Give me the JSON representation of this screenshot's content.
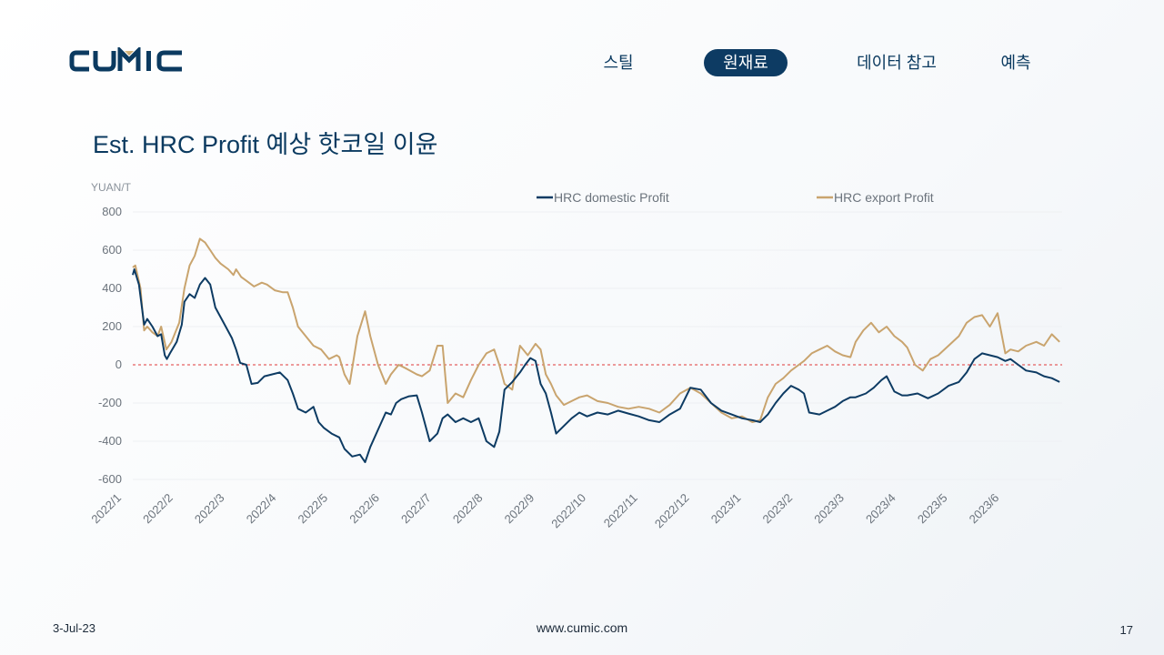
{
  "logo": {
    "text": "CUMIC"
  },
  "nav": {
    "items": [
      "스틸",
      "원재료",
      "데이터 참고",
      "예측"
    ],
    "active": "원재료"
  },
  "title": "Est. HRC Profit 예상 핫코일 이윤",
  "footer": {
    "date": "3-Jul-23",
    "url": "www.cumic.com",
    "page": "17"
  },
  "colors": {
    "domestic": "#0d3b63",
    "export": "#c9a46e",
    "zero_line": "#e03a3a",
    "grid": "#eef0f3"
  },
  "chart_data": {
    "type": "line",
    "ylabel": "YUAN/T",
    "ylim": [
      -600,
      800
    ],
    "yticks": [
      800,
      600,
      400,
      200,
      0,
      -200,
      -400,
      -600
    ],
    "xlabels": [
      "2022/1",
      "2022/2",
      "2022/3",
      "2022/4",
      "2022/5",
      "2022/6",
      "2022/7",
      "2022/8",
      "2022/9",
      "2022/10",
      "2022/11",
      "2022/12",
      "2023/1",
      "2023/2",
      "2023/3",
      "2023/4",
      "2023/5",
      "2023/6"
    ],
    "x_domain": [
      "2022/1",
      "2023/6"
    ],
    "zero_line": true,
    "legend_position": "top",
    "series": [
      {
        "name": "HRC domestic Profit",
        "color": "#0d3b63",
        "points": [
          [
            0.0,
            470
          ],
          [
            0.03,
            500
          ],
          [
            0.12,
            420
          ],
          [
            0.22,
            210
          ],
          [
            0.28,
            240
          ],
          [
            0.38,
            200
          ],
          [
            0.48,
            150
          ],
          [
            0.55,
            160
          ],
          [
            0.62,
            50
          ],
          [
            0.66,
            30
          ],
          [
            0.72,
            60
          ],
          [
            0.85,
            120
          ],
          [
            0.95,
            210
          ],
          [
            1.0,
            330
          ],
          [
            1.1,
            370
          ],
          [
            1.2,
            350
          ],
          [
            1.3,
            420
          ],
          [
            1.4,
            455
          ],
          [
            1.5,
            420
          ],
          [
            1.6,
            300
          ],
          [
            1.7,
            250
          ],
          [
            1.8,
            200
          ],
          [
            1.92,
            140
          ],
          [
            2.0,
            80
          ],
          [
            2.08,
            10
          ],
          [
            2.2,
            0
          ],
          [
            2.3,
            -100
          ],
          [
            2.42,
            -95
          ],
          [
            2.55,
            -60
          ],
          [
            2.7,
            -50
          ],
          [
            2.85,
            -40
          ],
          [
            3.0,
            -80
          ],
          [
            3.1,
            -150
          ],
          [
            3.2,
            -230
          ],
          [
            3.35,
            -250
          ],
          [
            3.5,
            -220
          ],
          [
            3.6,
            -300
          ],
          [
            3.7,
            -330
          ],
          [
            3.85,
            -360
          ],
          [
            4.0,
            -380
          ],
          [
            4.1,
            -440
          ],
          [
            4.25,
            -480
          ],
          [
            4.4,
            -470
          ],
          [
            4.5,
            -510
          ],
          [
            4.6,
            -430
          ],
          [
            4.75,
            -340
          ],
          [
            4.9,
            -250
          ],
          [
            5.0,
            -260
          ],
          [
            5.1,
            -200
          ],
          [
            5.2,
            -180
          ],
          [
            5.35,
            -165
          ],
          [
            5.5,
            -160
          ],
          [
            5.6,
            -250
          ],
          [
            5.75,
            -400
          ],
          [
            5.9,
            -360
          ],
          [
            6.0,
            -280
          ],
          [
            6.1,
            -260
          ],
          [
            6.25,
            -300
          ],
          [
            6.4,
            -280
          ],
          [
            6.55,
            -300
          ],
          [
            6.7,
            -280
          ],
          [
            6.85,
            -400
          ],
          [
            7.0,
            -430
          ],
          [
            7.1,
            -350
          ],
          [
            7.2,
            -130
          ],
          [
            7.35,
            -90
          ],
          [
            7.5,
            -40
          ],
          [
            7.6,
            0
          ],
          [
            7.7,
            35
          ],
          [
            7.8,
            20
          ],
          [
            7.9,
            -100
          ],
          [
            8.0,
            -150
          ],
          [
            8.1,
            -250
          ],
          [
            8.2,
            -360
          ],
          [
            8.35,
            -320
          ],
          [
            8.5,
            -280
          ],
          [
            8.65,
            -250
          ],
          [
            8.8,
            -270
          ],
          [
            9.0,
            -250
          ],
          [
            9.2,
            -260
          ],
          [
            9.4,
            -240
          ],
          [
            9.6,
            -255
          ],
          [
            9.8,
            -270
          ],
          [
            10.0,
            -290
          ],
          [
            10.2,
            -300
          ],
          [
            10.4,
            -260
          ],
          [
            10.6,
            -230
          ],
          [
            10.8,
            -120
          ],
          [
            11.0,
            -130
          ],
          [
            11.2,
            -200
          ],
          [
            11.4,
            -240
          ],
          [
            11.6,
            -260
          ],
          [
            11.8,
            -280
          ],
          [
            12.0,
            -290
          ],
          [
            12.15,
            -300
          ],
          [
            12.3,
            -260
          ],
          [
            12.45,
            -200
          ],
          [
            12.6,
            -150
          ],
          [
            12.75,
            -110
          ],
          [
            12.9,
            -130
          ],
          [
            13.0,
            -150
          ],
          [
            13.1,
            -250
          ],
          [
            13.3,
            -260
          ],
          [
            13.45,
            -240
          ],
          [
            13.6,
            -220
          ],
          [
            13.75,
            -190
          ],
          [
            13.9,
            -170
          ],
          [
            14.0,
            -170
          ],
          [
            14.2,
            -150
          ],
          [
            14.35,
            -120
          ],
          [
            14.5,
            -80
          ],
          [
            14.6,
            -60
          ],
          [
            14.75,
            -140
          ],
          [
            14.9,
            -160
          ],
          [
            15.0,
            -160
          ],
          [
            15.2,
            -150
          ],
          [
            15.4,
            -175
          ],
          [
            15.6,
            -150
          ],
          [
            15.8,
            -110
          ],
          [
            16.0,
            -90
          ],
          [
            16.15,
            -40
          ],
          [
            16.3,
            30
          ],
          [
            16.45,
            60
          ],
          [
            16.6,
            50
          ],
          [
            16.75,
            40
          ],
          [
            16.9,
            20
          ],
          [
            17.0,
            30
          ],
          [
            17.15,
            0
          ],
          [
            17.3,
            -30
          ],
          [
            17.5,
            -40
          ],
          [
            17.65,
            -60
          ],
          [
            17.8,
            -70
          ],
          [
            17.95,
            -90
          ]
        ]
      },
      {
        "name": "HRC export Profit",
        "color": "#c9a46e",
        "points": [
          [
            0.0,
            510
          ],
          [
            0.05,
            520
          ],
          [
            0.15,
            400
          ],
          [
            0.22,
            180
          ],
          [
            0.28,
            200
          ],
          [
            0.38,
            170
          ],
          [
            0.48,
            150
          ],
          [
            0.55,
            200
          ],
          [
            0.65,
            80
          ],
          [
            0.75,
            120
          ],
          [
            0.9,
            220
          ],
          [
            1.0,
            400
          ],
          [
            1.1,
            520
          ],
          [
            1.2,
            570
          ],
          [
            1.3,
            660
          ],
          [
            1.4,
            640
          ],
          [
            1.5,
            600
          ],
          [
            1.6,
            560
          ],
          [
            1.7,
            530
          ],
          [
            1.85,
            500
          ],
          [
            1.95,
            470
          ],
          [
            2.0,
            500
          ],
          [
            2.1,
            460
          ],
          [
            2.2,
            440
          ],
          [
            2.35,
            410
          ],
          [
            2.5,
            430
          ],
          [
            2.6,
            420
          ],
          [
            2.75,
            390
          ],
          [
            2.9,
            380
          ],
          [
            3.0,
            380
          ],
          [
            3.1,
            300
          ],
          [
            3.2,
            200
          ],
          [
            3.35,
            150
          ],
          [
            3.5,
            100
          ],
          [
            3.65,
            80
          ],
          [
            3.8,
            30
          ],
          [
            3.95,
            50
          ],
          [
            4.0,
            40
          ],
          [
            4.1,
            -50
          ],
          [
            4.2,
            -100
          ],
          [
            4.35,
            150
          ],
          [
            4.5,
            280
          ],
          [
            4.6,
            150
          ],
          [
            4.75,
            0
          ],
          [
            4.9,
            -100
          ],
          [
            5.0,
            -50
          ],
          [
            5.15,
            0
          ],
          [
            5.3,
            -20
          ],
          [
            5.5,
            -50
          ],
          [
            5.6,
            -60
          ],
          [
            5.75,
            -30
          ],
          [
            5.9,
            100
          ],
          [
            6.0,
            100
          ],
          [
            6.1,
            -200
          ],
          [
            6.25,
            -150
          ],
          [
            6.4,
            -170
          ],
          [
            6.55,
            -80
          ],
          [
            6.7,
            0
          ],
          [
            6.85,
            60
          ],
          [
            7.0,
            80
          ],
          [
            7.1,
            0
          ],
          [
            7.2,
            -100
          ],
          [
            7.35,
            -130
          ],
          [
            7.5,
            100
          ],
          [
            7.65,
            50
          ],
          [
            7.8,
            110
          ],
          [
            7.9,
            80
          ],
          [
            8.0,
            -50
          ],
          [
            8.1,
            -100
          ],
          [
            8.2,
            -160
          ],
          [
            8.35,
            -210
          ],
          [
            8.5,
            -190
          ],
          [
            8.65,
            -170
          ],
          [
            8.8,
            -160
          ],
          [
            9.0,
            -190
          ],
          [
            9.2,
            -200
          ],
          [
            9.4,
            -220
          ],
          [
            9.6,
            -230
          ],
          [
            9.8,
            -220
          ],
          [
            10.0,
            -230
          ],
          [
            10.2,
            -250
          ],
          [
            10.4,
            -210
          ],
          [
            10.6,
            -150
          ],
          [
            10.8,
            -120
          ],
          [
            11.0,
            -150
          ],
          [
            11.2,
            -200
          ],
          [
            11.4,
            -250
          ],
          [
            11.6,
            -280
          ],
          [
            11.8,
            -270
          ],
          [
            12.0,
            -300
          ],
          [
            12.15,
            -290
          ],
          [
            12.3,
            -170
          ],
          [
            12.45,
            -100
          ],
          [
            12.6,
            -70
          ],
          [
            12.75,
            -30
          ],
          [
            12.9,
            0
          ],
          [
            13.0,
            20
          ],
          [
            13.15,
            60
          ],
          [
            13.3,
            80
          ],
          [
            13.45,
            100
          ],
          [
            13.6,
            70
          ],
          [
            13.75,
            50
          ],
          [
            13.9,
            40
          ],
          [
            14.0,
            120
          ],
          [
            14.15,
            180
          ],
          [
            14.3,
            220
          ],
          [
            14.45,
            170
          ],
          [
            14.6,
            200
          ],
          [
            14.75,
            150
          ],
          [
            14.9,
            120
          ],
          [
            15.0,
            90
          ],
          [
            15.15,
            0
          ],
          [
            15.3,
            -30
          ],
          [
            15.45,
            30
          ],
          [
            15.6,
            50
          ],
          [
            15.8,
            100
          ],
          [
            16.0,
            150
          ],
          [
            16.15,
            220
          ],
          [
            16.3,
            250
          ],
          [
            16.45,
            260
          ],
          [
            16.6,
            200
          ],
          [
            16.75,
            270
          ],
          [
            16.9,
            60
          ],
          [
            17.0,
            80
          ],
          [
            17.15,
            70
          ],
          [
            17.3,
            100
          ],
          [
            17.5,
            120
          ],
          [
            17.65,
            100
          ],
          [
            17.8,
            160
          ],
          [
            17.95,
            120
          ]
        ]
      }
    ]
  }
}
